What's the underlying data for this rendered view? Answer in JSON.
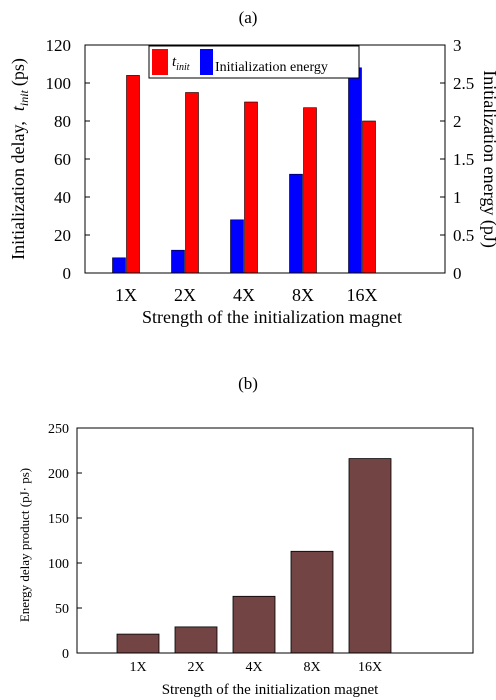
{
  "chart_data": [
    {
      "panel_label": "(a)",
      "type": "bar",
      "categories": [
        "1X",
        "2X",
        "4X",
        "8X",
        "16X"
      ],
      "series": [
        {
          "name": "t",
          "name_subscript": "init",
          "axis": "left",
          "color": "#ff0000",
          "values": [
            104,
            95,
            90,
            87,
            80
          ]
        },
        {
          "name": "Initialization energy",
          "axis": "right",
          "color": "#0000ff",
          "values": [
            0.2,
            0.3,
            0.7,
            1.3,
            2.7
          ]
        }
      ],
      "xlabel": "Strength of the initialization magnet",
      "ylabel_prefix": "Initialization delay,",
      "ylabel_symbol": "t",
      "ylabel_subscript": "init",
      "ylabel_suffix": "(ps)",
      "y2label": "Initialization energy (pJ)",
      "ylim": [
        0,
        120
      ],
      "y2lim": [
        0,
        3
      ],
      "yticks": [
        "0",
        "20",
        "40",
        "60",
        "80",
        "100",
        "120"
      ],
      "y2ticks": [
        "0",
        "0.5",
        "1",
        "1.5",
        "2",
        "2.5",
        "3"
      ],
      "legend_position": "top-right"
    },
    {
      "panel_label": "(b)",
      "type": "bar",
      "categories": [
        "1X",
        "2X",
        "4X",
        "8X",
        "16X"
      ],
      "series": [
        {
          "color": "#724444",
          "values": [
            21,
            29,
            63,
            113,
            216
          ]
        }
      ],
      "xlabel": "Strength of the initialization magnet",
      "ylabel": "Energy delay product (pJ· ps)",
      "ylim": [
        0,
        250
      ],
      "yticks": [
        "0",
        "50",
        "100",
        "150",
        "200",
        "250"
      ]
    }
  ]
}
